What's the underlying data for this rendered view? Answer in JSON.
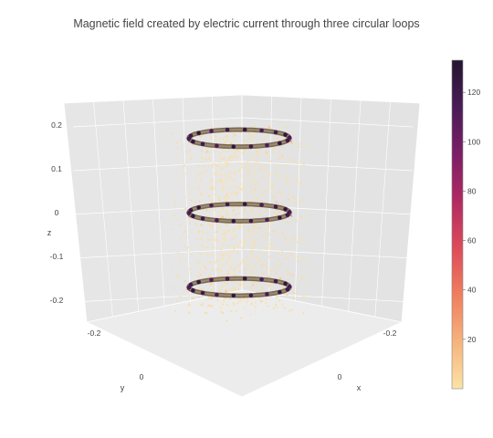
{
  "chart_data": {
    "type": "cone3d",
    "title": "Magnetic field created by electric current through three circular loops",
    "axes": {
      "x": {
        "label": "x",
        "ticks": [
          -0.2,
          0
        ]
      },
      "y": {
        "label": "y",
        "ticks": [
          -0.2,
          0
        ]
      },
      "z": {
        "label": "z",
        "ticks": [
          0.2,
          0.1,
          0,
          -0.1,
          -0.2
        ],
        "range": [
          -0.25,
          0.25
        ]
      }
    },
    "loops": [
      {
        "name": "top",
        "z": 0.17,
        "radius": 0.15
      },
      {
        "name": "middle",
        "z": 0.0,
        "radius": 0.15
      },
      {
        "name": "bottom",
        "z": -0.17,
        "radius": 0.15
      }
    ],
    "colorbar": {
      "ticks": [
        20,
        40,
        60,
        80,
        100,
        120
      ],
      "range": [
        0,
        133
      ],
      "colorscale": [
        "#fbe3a6",
        "#f6b37c",
        "#ef7e5e",
        "#dd4b5a",
        "#b12a62",
        "#7b1f66",
        "#4a1c57",
        "#23152f"
      ]
    },
    "grid": true
  }
}
